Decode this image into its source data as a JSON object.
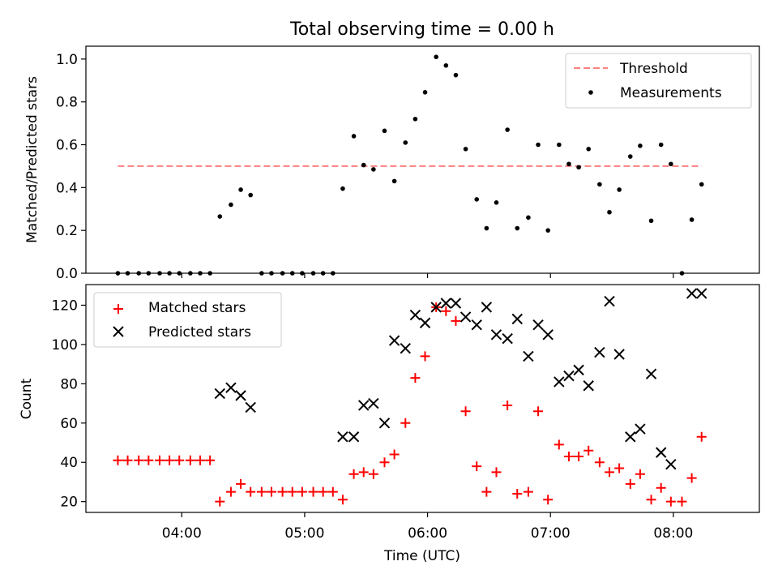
{
  "chart_data": [
    {
      "type": "scatter",
      "title": "Total observing time = 0.00 h",
      "ylabel": "Matched/Predicted stars",
      "xlabel": "",
      "ylim": [
        0,
        1.06
      ],
      "xlim_hours": [
        3.22,
        8.7
      ],
      "yticks": [
        "0.0",
        "0.2",
        "0.4",
        "0.6",
        "0.8",
        "1.0"
      ],
      "ytick_values": [
        0,
        0.2,
        0.4,
        0.6,
        0.8,
        1.0
      ],
      "legend_position": "top-right",
      "threshold": {
        "name": "Threshold",
        "value": 0.5,
        "x_start": 3.48,
        "x_end": 8.23,
        "color": "#ff7f7f"
      },
      "series": [
        {
          "name": "Measurements",
          "color": "#000000",
          "x": [
            3.48,
            3.56,
            3.65,
            3.73,
            3.82,
            3.9,
            3.98,
            4.07,
            4.15,
            4.23,
            4.31,
            4.4,
            4.48,
            4.56,
            4.65,
            4.73,
            4.82,
            4.9,
            4.98,
            5.07,
            5.15,
            5.23,
            5.31,
            5.4,
            5.48,
            5.56,
            5.65,
            5.73,
            5.82,
            5.9,
            5.98,
            6.07,
            6.15,
            6.23,
            6.31,
            6.4,
            6.48,
            6.56,
            6.65,
            6.73,
            6.82,
            6.9,
            6.98,
            7.07,
            7.15,
            7.23,
            7.31,
            7.4,
            7.48,
            7.56,
            7.65,
            7.73,
            7.82,
            7.9,
            7.98,
            8.07,
            8.15,
            8.23
          ],
          "y": [
            0,
            0,
            0,
            0,
            0,
            0,
            0,
            0,
            0,
            0,
            0.265,
            0.32,
            0.39,
            0.365,
            0,
            0,
            0,
            0,
            0,
            0,
            0,
            0,
            0.395,
            0.64,
            0.505,
            0.485,
            0.665,
            0.43,
            0.61,
            0.72,
            0.845,
            1.01,
            0.97,
            0.925,
            0.58,
            0.345,
            0.21,
            0.33,
            0.67,
            0.21,
            0.26,
            0.6,
            0.2,
            0.6,
            0.51,
            0.495,
            0.58,
            0.415,
            0.285,
            0.39,
            0.545,
            0.595,
            0.245,
            0.6,
            0.51,
            0,
            0.25,
            0.415
          ]
        }
      ]
    },
    {
      "type": "scatter",
      "title": "",
      "ylabel": "Count",
      "xlabel": "Time (UTC)",
      "ylim": [
        14.5,
        130.5
      ],
      "xlim_hours": [
        3.22,
        8.7
      ],
      "yticks": [
        "20",
        "40",
        "60",
        "80",
        "100",
        "120"
      ],
      "ytick_values": [
        20,
        40,
        60,
        80,
        100,
        120
      ],
      "xticks": [
        "04:00",
        "05:00",
        "06:00",
        "07:00",
        "08:00"
      ],
      "xtick_values": [
        4,
        5,
        6,
        7,
        8
      ],
      "legend_position": "top-left",
      "series": [
        {
          "name": "Matched stars",
          "marker": "+",
          "color": "#ff0000",
          "x": [
            3.48,
            3.56,
            3.65,
            3.73,
            3.82,
            3.9,
            3.98,
            4.07,
            4.15,
            4.23,
            4.31,
            4.4,
            4.48,
            4.56,
            4.65,
            4.73,
            4.82,
            4.9,
            4.98,
            5.07,
            5.15,
            5.23,
            5.31,
            5.4,
            5.48,
            5.56,
            5.65,
            5.73,
            5.82,
            5.9,
            5.98,
            6.07,
            6.15,
            6.23,
            6.31,
            6.4,
            6.48,
            6.56,
            6.65,
            6.73,
            6.82,
            6.9,
            6.98,
            7.07,
            7.15,
            7.23,
            7.31,
            7.4,
            7.48,
            7.56,
            7.65,
            7.73,
            7.82,
            7.9,
            7.98,
            8.07,
            8.15,
            8.23
          ],
          "y": [
            41,
            41,
            41,
            41,
            41,
            41,
            41,
            41,
            41,
            41,
            20,
            25,
            29,
            25,
            25,
            25,
            25,
            25,
            25,
            25,
            25,
            25,
            21,
            34,
            35,
            34,
            40,
            44,
            60,
            83,
            94,
            119,
            117,
            112,
            66,
            38,
            25,
            35,
            69,
            24,
            25,
            66,
            21,
            49,
            43,
            43,
            46,
            40,
            35,
            37,
            29,
            34,
            21,
            27,
            20,
            20,
            32,
            53
          ]
        },
        {
          "name": "Predicted stars",
          "marker": "x",
          "color": "#000000",
          "x": [
            4.31,
            4.4,
            4.48,
            4.56,
            5.31,
            5.4,
            5.48,
            5.56,
            5.65,
            5.73,
            5.82,
            5.9,
            5.98,
            6.07,
            6.15,
            6.23,
            6.31,
            6.4,
            6.48,
            6.56,
            6.65,
            6.73,
            6.82,
            6.9,
            6.98,
            7.07,
            7.15,
            7.23,
            7.31,
            7.4,
            7.48,
            7.56,
            7.65,
            7.73,
            7.82,
            7.9,
            7.98,
            8.15,
            8.23
          ],
          "y": [
            75,
            78,
            74,
            68,
            53,
            53,
            69,
            70,
            60,
            102,
            98,
            115,
            111,
            119,
            121,
            121,
            114,
            110,
            119,
            105,
            103,
            113,
            94,
            110,
            105,
            81,
            84,
            87,
            79,
            96,
            122,
            95,
            53,
            57,
            85,
            45,
            39,
            126,
            126
          ]
        }
      ]
    }
  ]
}
